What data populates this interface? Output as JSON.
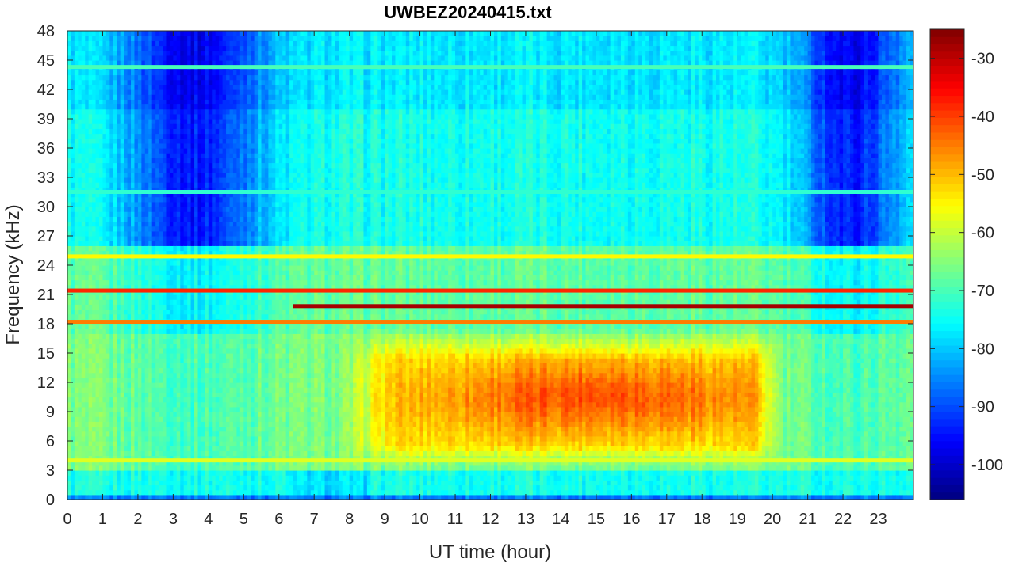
{
  "chart_data": {
    "type": "heatmap",
    "title": "UWBEZ20240415.txt",
    "xlabel": "UT time (hour)",
    "ylabel": "Frequency (kHz)",
    "xlim": [
      0,
      24
    ],
    "ylim": [
      0,
      48
    ],
    "x_ticks": [
      "0",
      "1",
      "2",
      "3",
      "4",
      "5",
      "6",
      "7",
      "8",
      "9",
      "10",
      "11",
      "12",
      "13",
      "14",
      "15",
      "16",
      "17",
      "18",
      "19",
      "20",
      "21",
      "22",
      "23"
    ],
    "y_ticks": [
      "0",
      "3",
      "6",
      "9",
      "12",
      "15",
      "18",
      "21",
      "24",
      "27",
      "30",
      "33",
      "36",
      "39",
      "42",
      "45",
      "48"
    ],
    "colorbar": {
      "colormap": "jet",
      "range": [
        -106,
        -25
      ],
      "ticks": [
        "-30",
        "-40",
        "-50",
        "-60",
        "-70",
        "-80",
        "-90",
        "-100"
      ]
    },
    "features": [
      {
        "type": "background",
        "description_level_dB": -78
      },
      {
        "type": "band",
        "freq_kHz": 19.8,
        "start_hour": 6.4,
        "end_hour": 24,
        "level_dB": -28
      },
      {
        "type": "band",
        "freq_kHz": 21.4,
        "start_hour": 0,
        "end_hour": 24,
        "level_dB": -38
      },
      {
        "type": "band",
        "freq_kHz": 18.2,
        "start_hour": 0,
        "end_hour": 24,
        "level_dB": -45
      },
      {
        "type": "band",
        "freq_kHz": 24.9,
        "start_hour": 0,
        "end_hour": 24,
        "level_dB": -55
      },
      {
        "type": "band",
        "freq_kHz": 44.3,
        "start_hour": 0,
        "end_hour": 24,
        "level_dB": -70
      },
      {
        "type": "band",
        "freq_kHz": 31.5,
        "start_hour": 0,
        "end_hour": 24,
        "level_dB": -72
      },
      {
        "type": "band",
        "freq_kHz": 4.0,
        "start_hour": 0,
        "end_hour": 24,
        "level_dB": -58
      },
      {
        "type": "region",
        "freq_range_kHz": [
          4,
          17
        ],
        "start_hour": 8,
        "end_hour": 20,
        "level_dB": -50
      }
    ]
  }
}
